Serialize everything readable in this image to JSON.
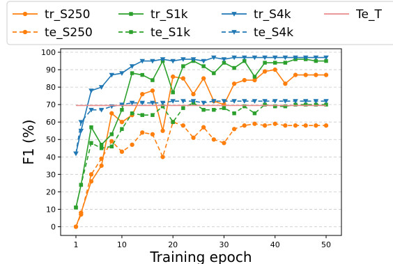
{
  "chart_data": {
    "type": "line",
    "xlabel": "Training epoch",
    "ylabel": "F1 (%)",
    "xlim": [
      -2,
      53
    ],
    "ylim": [
      -5,
      102
    ],
    "xticks": [
      1,
      10,
      20,
      30,
      40,
      50
    ],
    "yticks": [
      0,
      10,
      20,
      30,
      40,
      50,
      60,
      70,
      80,
      90,
      100
    ],
    "grid": "horizontal-dashed",
    "legend_position": "top",
    "x": [
      1,
      2,
      4,
      6,
      8,
      10,
      12,
      14,
      16,
      18,
      20,
      22,
      24,
      26,
      28,
      30,
      32,
      34,
      36,
      38,
      40,
      42,
      44,
      46,
      48,
      50
    ],
    "series": [
      {
        "name": "tr_S250",
        "color": "#ff7f0e",
        "linestyle": "solid",
        "marker": "circle",
        "values": [
          0,
          8,
          26,
          35,
          65,
          60,
          64,
          76,
          78,
          55,
          86,
          85,
          76,
          85,
          72,
          70,
          82,
          84,
          84,
          89,
          90,
          82,
          87,
          87,
          87,
          87
        ]
      },
      {
        "name": "te_S250",
        "color": "#ff7f0e",
        "linestyle": "dashed",
        "marker": "circle",
        "values": [
          0,
          7,
          30,
          39,
          49,
          43,
          47,
          54,
          53,
          40,
          60,
          58,
          51,
          57,
          50,
          48,
          56,
          58,
          59,
          58,
          59,
          58,
          58,
          58,
          58,
          58
        ]
      },
      {
        "name": "tr_S1k",
        "color": "#2ca02c",
        "linestyle": "solid",
        "marker": "square",
        "values": [
          11,
          24,
          57,
          47,
          53,
          67,
          88,
          87,
          84,
          95,
          77,
          92,
          95,
          92,
          88,
          94,
          91,
          95,
          86,
          94,
          94,
          94,
          96,
          96,
          95,
          95
        ]
      },
      {
        "name": "te_S1k",
        "color": "#2ca02c",
        "linestyle": "dashed",
        "marker": "square",
        "values": [
          11,
          24,
          48,
          45,
          46,
          56,
          65,
          64,
          64,
          69,
          60,
          68,
          71,
          67,
          67,
          68,
          65,
          69,
          65,
          70,
          69,
          69,
          70,
          70,
          70,
          70
        ]
      },
      {
        "name": "tr_S4k",
        "color": "#1f77b4",
        "linestyle": "solid",
        "marker": "triangle-down",
        "values": [
          42,
          55,
          78,
          80,
          87,
          88,
          92,
          95,
          95,
          96,
          95,
          96,
          96,
          95,
          97,
          96,
          97,
          97,
          97,
          97,
          97,
          97,
          97,
          97,
          97,
          97
        ]
      },
      {
        "name": "te_S4k",
        "color": "#1f77b4",
        "linestyle": "dashed",
        "marker": "triangle-down",
        "values": [
          42,
          60,
          67,
          67,
          69,
          70,
          71,
          71,
          71,
          71,
          72,
          72,
          72,
          71,
          72,
          72,
          72,
          72,
          72,
          72,
          72,
          72,
          72,
          72,
          72,
          72
        ]
      },
      {
        "name": "Te_T",
        "color": "#e88a8a",
        "linestyle": "solid",
        "marker": "none",
        "x": [
          1,
          50
        ],
        "values": [
          69.5,
          69.5
        ]
      }
    ]
  }
}
